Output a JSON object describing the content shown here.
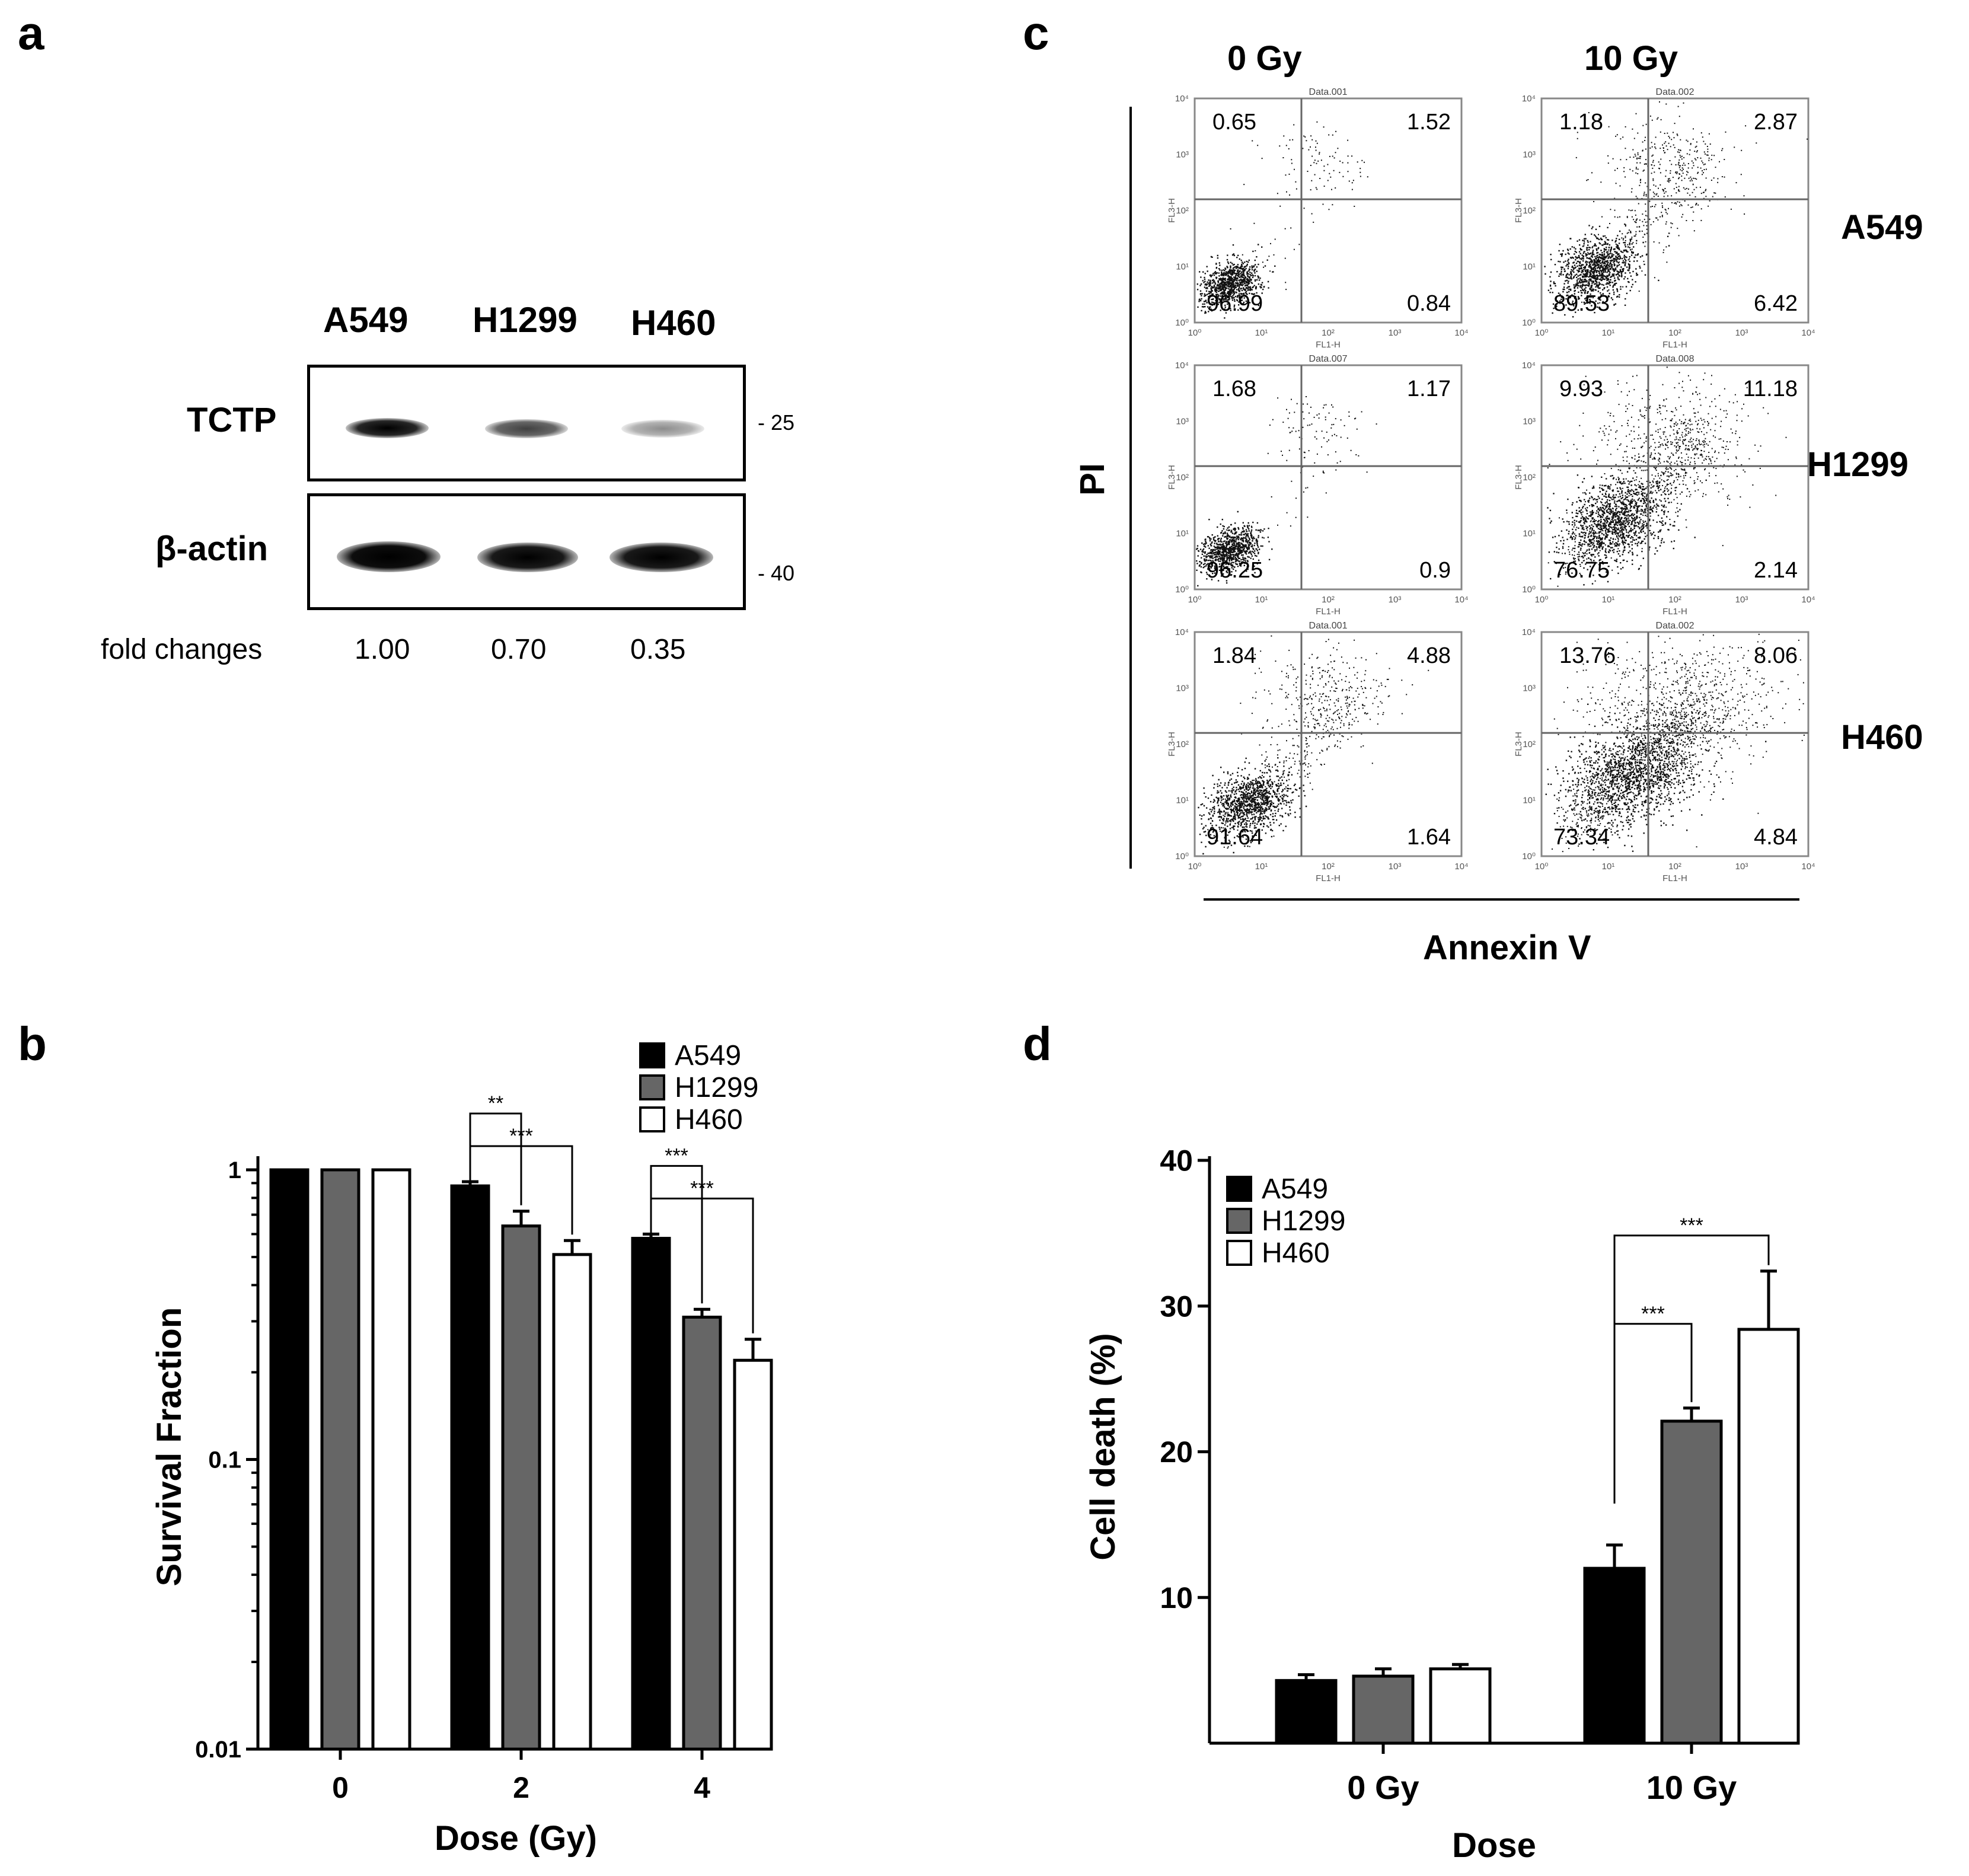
{
  "panels": {
    "a": {
      "letter": "a",
      "lanes": [
        "A549",
        "H1299",
        "H460"
      ],
      "rows": [
        {
          "label": "TCTP",
          "marker": "25",
          "band_intensity": [
            1.0,
            0.7,
            0.35
          ]
        },
        {
          "label": "β-actin",
          "marker": "40",
          "band_intensity": [
            1.0,
            1.0,
            1.0
          ]
        }
      ],
      "fold_label": "fold changes",
      "fold_values": [
        "1.00",
        "0.70",
        "0.35"
      ]
    },
    "b": {
      "letter": "b"
    },
    "c": {
      "letter": "c",
      "columns": [
        "0 Gy",
        "10 Gy"
      ],
      "rows": [
        "A549",
        "H1299",
        "H460"
      ],
      "y_label": "PI",
      "x_label": "Annexin V",
      "plot_titles": [
        [
          "Data.001",
          "Data.002"
        ],
        [
          "Data.007",
          "Data.008"
        ],
        [
          "Data.001",
          "Data.002"
        ]
      ],
      "axis_x_name": "FL1-H",
      "axis_y_name": "FL3-H",
      "tick_labels": [
        "10⁰",
        "10¹",
        "10²",
        "10³",
        "10⁴"
      ],
      "quadrants": [
        [
          {
            "ul": "0.65",
            "ur": "1.52",
            "ll": "96.99",
            "lr": "0.84"
          },
          {
            "ul": "1.18",
            "ur": "2.87",
            "ll": "89.53",
            "lr": "6.42"
          }
        ],
        [
          {
            "ul": "1.68",
            "ur": "1.17",
            "ll": "96.25",
            "lr": "0.9"
          },
          {
            "ul": "9.93",
            "ur": "11.18",
            "ll": "76.75",
            "lr": "2.14"
          }
        ],
        [
          {
            "ul": "1.84",
            "ur": "4.88",
            "ll": "91.64",
            "lr": "1.64"
          },
          {
            "ul": "13.76",
            "ur": "8.06",
            "ll": "73.34",
            "lr": "4.84"
          }
        ]
      ]
    },
    "d": {
      "letter": "d"
    }
  },
  "colors": {
    "A549": "#000000",
    "H1299": "#666666",
    "H460": "#ffffff"
  },
  "chart_data": [
    {
      "id": "b",
      "type": "bar",
      "yscale": "log",
      "categories": [
        "0",
        "2",
        "4"
      ],
      "series": [
        {
          "name": "A549",
          "values": [
            1.0,
            0.88,
            0.58
          ],
          "errors": [
            0,
            0.03,
            0.02
          ]
        },
        {
          "name": "H1299",
          "values": [
            1.0,
            0.64,
            0.31
          ],
          "errors": [
            0,
            0.08,
            0.02
          ]
        },
        {
          "name": "H460",
          "values": [
            1.0,
            0.51,
            0.22
          ],
          "errors": [
            0,
            0.06,
            0.04
          ]
        }
      ],
      "ylim": [
        0.01,
        1
      ],
      "yticks": [
        "0.01",
        "0.1",
        "1"
      ],
      "xlabel": "Dose (Gy)",
      "ylabel": "Survival Fraction",
      "legend": "top-right",
      "significance": [
        {
          "group": "2",
          "from": "A549",
          "to": "H1299",
          "label": "**"
        },
        {
          "group": "2",
          "from": "A549",
          "to": "H460",
          "label": "***"
        },
        {
          "group": "4",
          "from": "A549",
          "to": "H1299",
          "label": "***"
        },
        {
          "group": "4",
          "from": "A549",
          "to": "H460",
          "label": "***"
        }
      ]
    },
    {
      "id": "d",
      "type": "bar",
      "categories": [
        "0 Gy",
        "10 Gy"
      ],
      "series": [
        {
          "name": "A549",
          "values": [
            4.3,
            12.0
          ],
          "errors": [
            0.4,
            1.6
          ]
        },
        {
          "name": "H1299",
          "values": [
            4.6,
            22.1
          ],
          "errors": [
            0.5,
            0.9
          ]
        },
        {
          "name": "H460",
          "values": [
            5.1,
            28.4
          ],
          "errors": [
            0.3,
            4.0
          ]
        }
      ],
      "ylim": [
        0,
        40
      ],
      "yticks": [
        "10",
        "20",
        "30",
        "40"
      ],
      "xlabel": "Dose",
      "ylabel": "Cell death (%)",
      "legend": "top-left",
      "significance": [
        {
          "group": "10 Gy",
          "from": "A549",
          "to": "H1299",
          "label": "***"
        },
        {
          "group": "10 Gy",
          "from": "A549",
          "to": "H460",
          "label": "***"
        }
      ]
    }
  ]
}
